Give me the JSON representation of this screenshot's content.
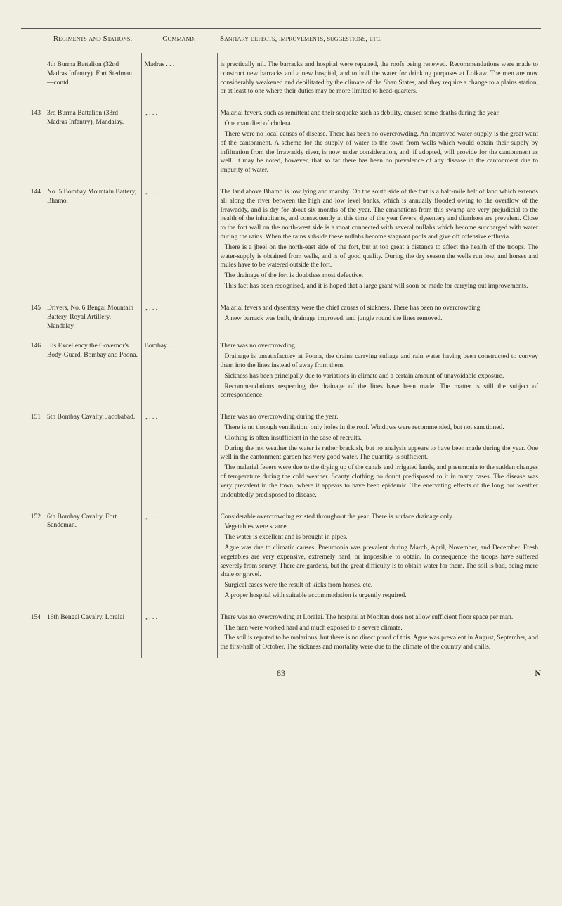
{
  "headers": {
    "c1": "",
    "c2": "Regiments and Stations.",
    "c3": "Command.",
    "c4": "Sanitary defects, improvements, suggestions, etc."
  },
  "rows": [
    {
      "n": "",
      "regiment": "4th Burma Battalion (32nd Madras Infantry). Fort Stedman—contd.",
      "command": "Madras   .   .   .",
      "sanitary": "is practically nil. The barracks and hospital were repaired, the roofs being renewed. Recommendations were made to construct new barracks and a new hospital, and to boil the water for drinking purposes at Loikaw. The men are now considerably weakened and debilitated by the climate of the Shan States, and they require a change to a plains station, or at least to one where their duties may be more limited to head-quarters."
    },
    {
      "n": "143",
      "regiment": "3rd Burma Battalion (33rd Madras Infantry), Mandalay.",
      "command": "„   .   .   .",
      "sanitary": "Malarial fevers, such as remittent and their sequelæ such as debility, caused some deaths during the year.\nOne man died of cholera.\nThere were no local causes of disease. There has been no overcrowding. An improved water-supply is the great want of the cantonment. A scheme for the supply of water to the town from wells which would obtain their supply by infiltration from the Irrawaddy river, is now under consideration, and, if adopted, will provide for the cantonment as well. It may be noted, however, that so far there has been no prevalence of any disease in the cantonment due to impurity of water."
    },
    {
      "n": "144",
      "regiment": "No. 5 Bombay Mountain Battery, Bhamo.",
      "command": "„   .   .   .",
      "sanitary": "The land above Bhamo is low lying and marshy. On the south side of the fort is a half-mile belt of land which extends all along the river between the high and low level banks, which is annually flooded owing to the overflow of the Irrawaddy, and is dry for about six months of the year. The emanations from this swamp are very prejudicial to the health of the inhabitants, and consequently at this time of the year fevers, dysentery and diarrhœa are prevalent. Close to the fort wall on the north-west side is a moat connected with several nullahs which become surcharged with water during the rains. When the rains subside these nullahs become stagnant pools and give off offensive effluvia.\nThere is a jheel on the north-east side of the fort, but at too great a distance to affect the health of the troops. The water-supply is obtained from wells, and is of good quality. During the dry season the wells run low, and horses and mules have to be watered outside the fort.\nThe drainage of the fort is doubtless most defective.\nThis fact has been recognised, and it is hoped that a large grant will soon be made for carrying out improvements."
    },
    {
      "n": "145",
      "regiment": "Drivers, No. 6 Bengal Mountain Battery, Royal Artillery, Mandalay.",
      "command": "„   .   .   .",
      "sanitary": "Malarial fevers and dysentery were the chief causes of sickness. There has been no overcrowding.\nA new barrack was built, drainage improved, and jungle round the lines removed."
    },
    {
      "n": "146",
      "regiment": "His Excellency the Governor's Body-Guard, Bombay and Poona.",
      "command": "Bombay   .   .   .",
      "sanitary": "There was no overcrowding.\nDrainage is unsatisfactory at Poona, the drains carrying sullage and rain water having been constructed to convey them into the lines instead of away from them.\nSickness has been principally due to variations in climate and a certain amount of unavoidable exposure.\nRecommendations respecting the drainage of the lines have been made. The matter is still the subject of correspondence."
    },
    {
      "n": "151",
      "regiment": "5th Bombay Cavalry, Jacobabad.",
      "command": "„   .   .   .",
      "sanitary": "There was no overcrowding during the year.\nThere is no through ventilation, only holes in the roof. Windows were recommended, but not sanctioned.\nClothing is often insufficient in the case of recruits.\nDuring the hot weather the water is rather brackish, but no analysis appears to have been made during the year. One well in the cantonment garden has very good water. The quantity is sufficient.\nThe malarial fevers were due to the drying up of the canals and irrigated lands, and pneumonia to the sudden changes of temperature during the cold weather. Scanty clothing no doubt predisposed to it in many cases. The disease was very prevalent in the town, where it appears to have been epidemic. The enervating effects of the long hot weather undoubtedly predisposed to disease."
    },
    {
      "n": "152",
      "regiment": "6th Bombay Cavalry, Fort Sandeman.",
      "command": "„   .   .   .",
      "sanitary": "Considerable overcrowding existed throughout the year. There is surface drainage only.\nVegetables were scarce.\nThe water is excellent and is brought in pipes.\nAgue was due to climatic causes. Pneumonia was prevalent during March, April, November, and December. Fresh vegetables are very expensive, extremely hard, or impossible to obtain. In consequence the troops have suffered severely from scurvy. There are gardens, but the great difficulty is to obtain water for them. The soil is bad, being mere shale or gravel.\nSurgical cases were the result of kicks from horses, etc.\nA proper hospital with suitable accommodation is urgently required."
    },
    {
      "n": "154",
      "regiment": "16th Bengal Cavalry, Loralai",
      "command": "„   .   .   .",
      "sanitary": "There was no overcrowding at Loralai. The hospital at Mooltan does not allow sufficient floor space per man.\nThe men were worked hard and much exposed to a severe climate.\nThe soil is reputed to be malarious, but there is no direct proof of this. Ague was prevalent in August, September, and the first-half of October. The sickness and mortality were due to the climate of the country and chills."
    }
  ],
  "footer": {
    "page": "83",
    "sig": "N"
  }
}
